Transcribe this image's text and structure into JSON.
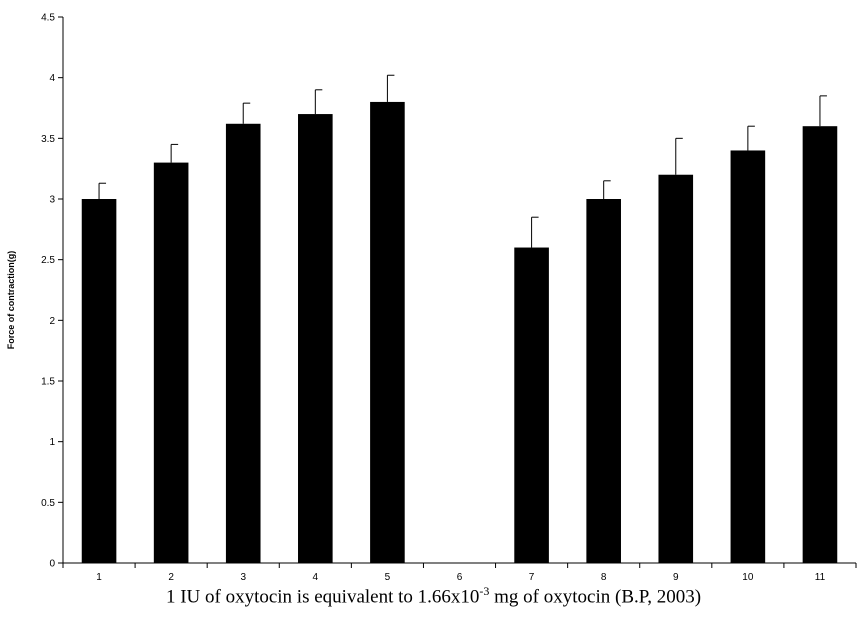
{
  "chart_data": {
    "type": "bar",
    "categories": [
      "1",
      "2",
      "3",
      "4",
      "5",
      "6",
      "7",
      "8",
      "9",
      "10",
      "11"
    ],
    "values": [
      3.0,
      3.3,
      3.62,
      3.7,
      3.8,
      null,
      2.6,
      3.0,
      3.2,
      3.4,
      3.6
    ],
    "error": [
      0.13,
      0.15,
      0.17,
      0.2,
      0.22,
      null,
      0.25,
      0.15,
      0.3,
      0.2,
      0.25
    ],
    "ylabel": "Force of contraction(g)",
    "xlabel": "",
    "ylim": [
      0,
      4.5
    ],
    "yticks": [
      "0",
      "0.5",
      "1",
      "1.5",
      "2",
      "2.5",
      "3",
      "3.5",
      "4",
      "4.5"
    ],
    "bar_color": "#000000",
    "grid": false,
    "legend": "none"
  },
  "caption": {
    "text": "1 IU of oxytocin is equivalent to 1.66x10",
    "exponent": "-3",
    "text_after": " mg of oxytocin (B.P, 2003)"
  }
}
